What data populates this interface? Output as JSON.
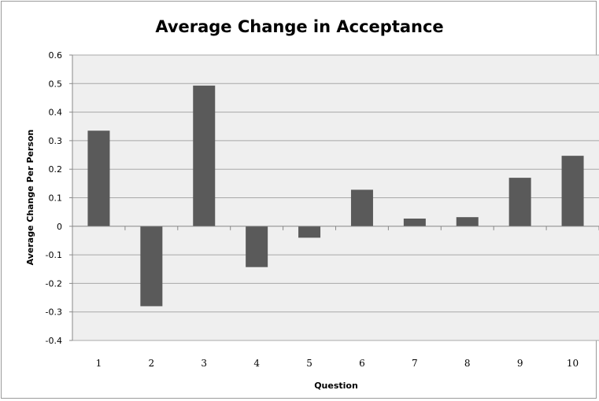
{
  "chart_data": {
    "type": "bar",
    "title": "Average Change in Acceptance",
    "xlabel": "Question",
    "ylabel": "Average Change Per Person",
    "categories": [
      "1",
      "2",
      "3",
      "4",
      "5",
      "6",
      "7",
      "8",
      "9",
      "10"
    ],
    "values": [
      0.335,
      -0.28,
      0.493,
      -0.143,
      -0.04,
      0.128,
      0.027,
      0.032,
      0.17,
      0.247
    ],
    "ylim": [
      -0.4,
      0.6
    ],
    "yticks": [
      "0.6",
      "0.5",
      "0.4",
      "0.3",
      "0.2",
      "0.1",
      "0",
      "-0.1",
      "-0.2",
      "-0.3",
      "-0.4"
    ],
    "ytick_values": [
      0.6,
      0.5,
      0.4,
      0.3,
      0.2,
      0.1,
      0,
      -0.1,
      -0.2,
      -0.3,
      -0.4
    ],
    "grid": true,
    "legend": "none",
    "colors": {
      "bar": "#5a5a5a",
      "plot_bg": "#efefef",
      "grid": "#a8a8a8"
    }
  }
}
